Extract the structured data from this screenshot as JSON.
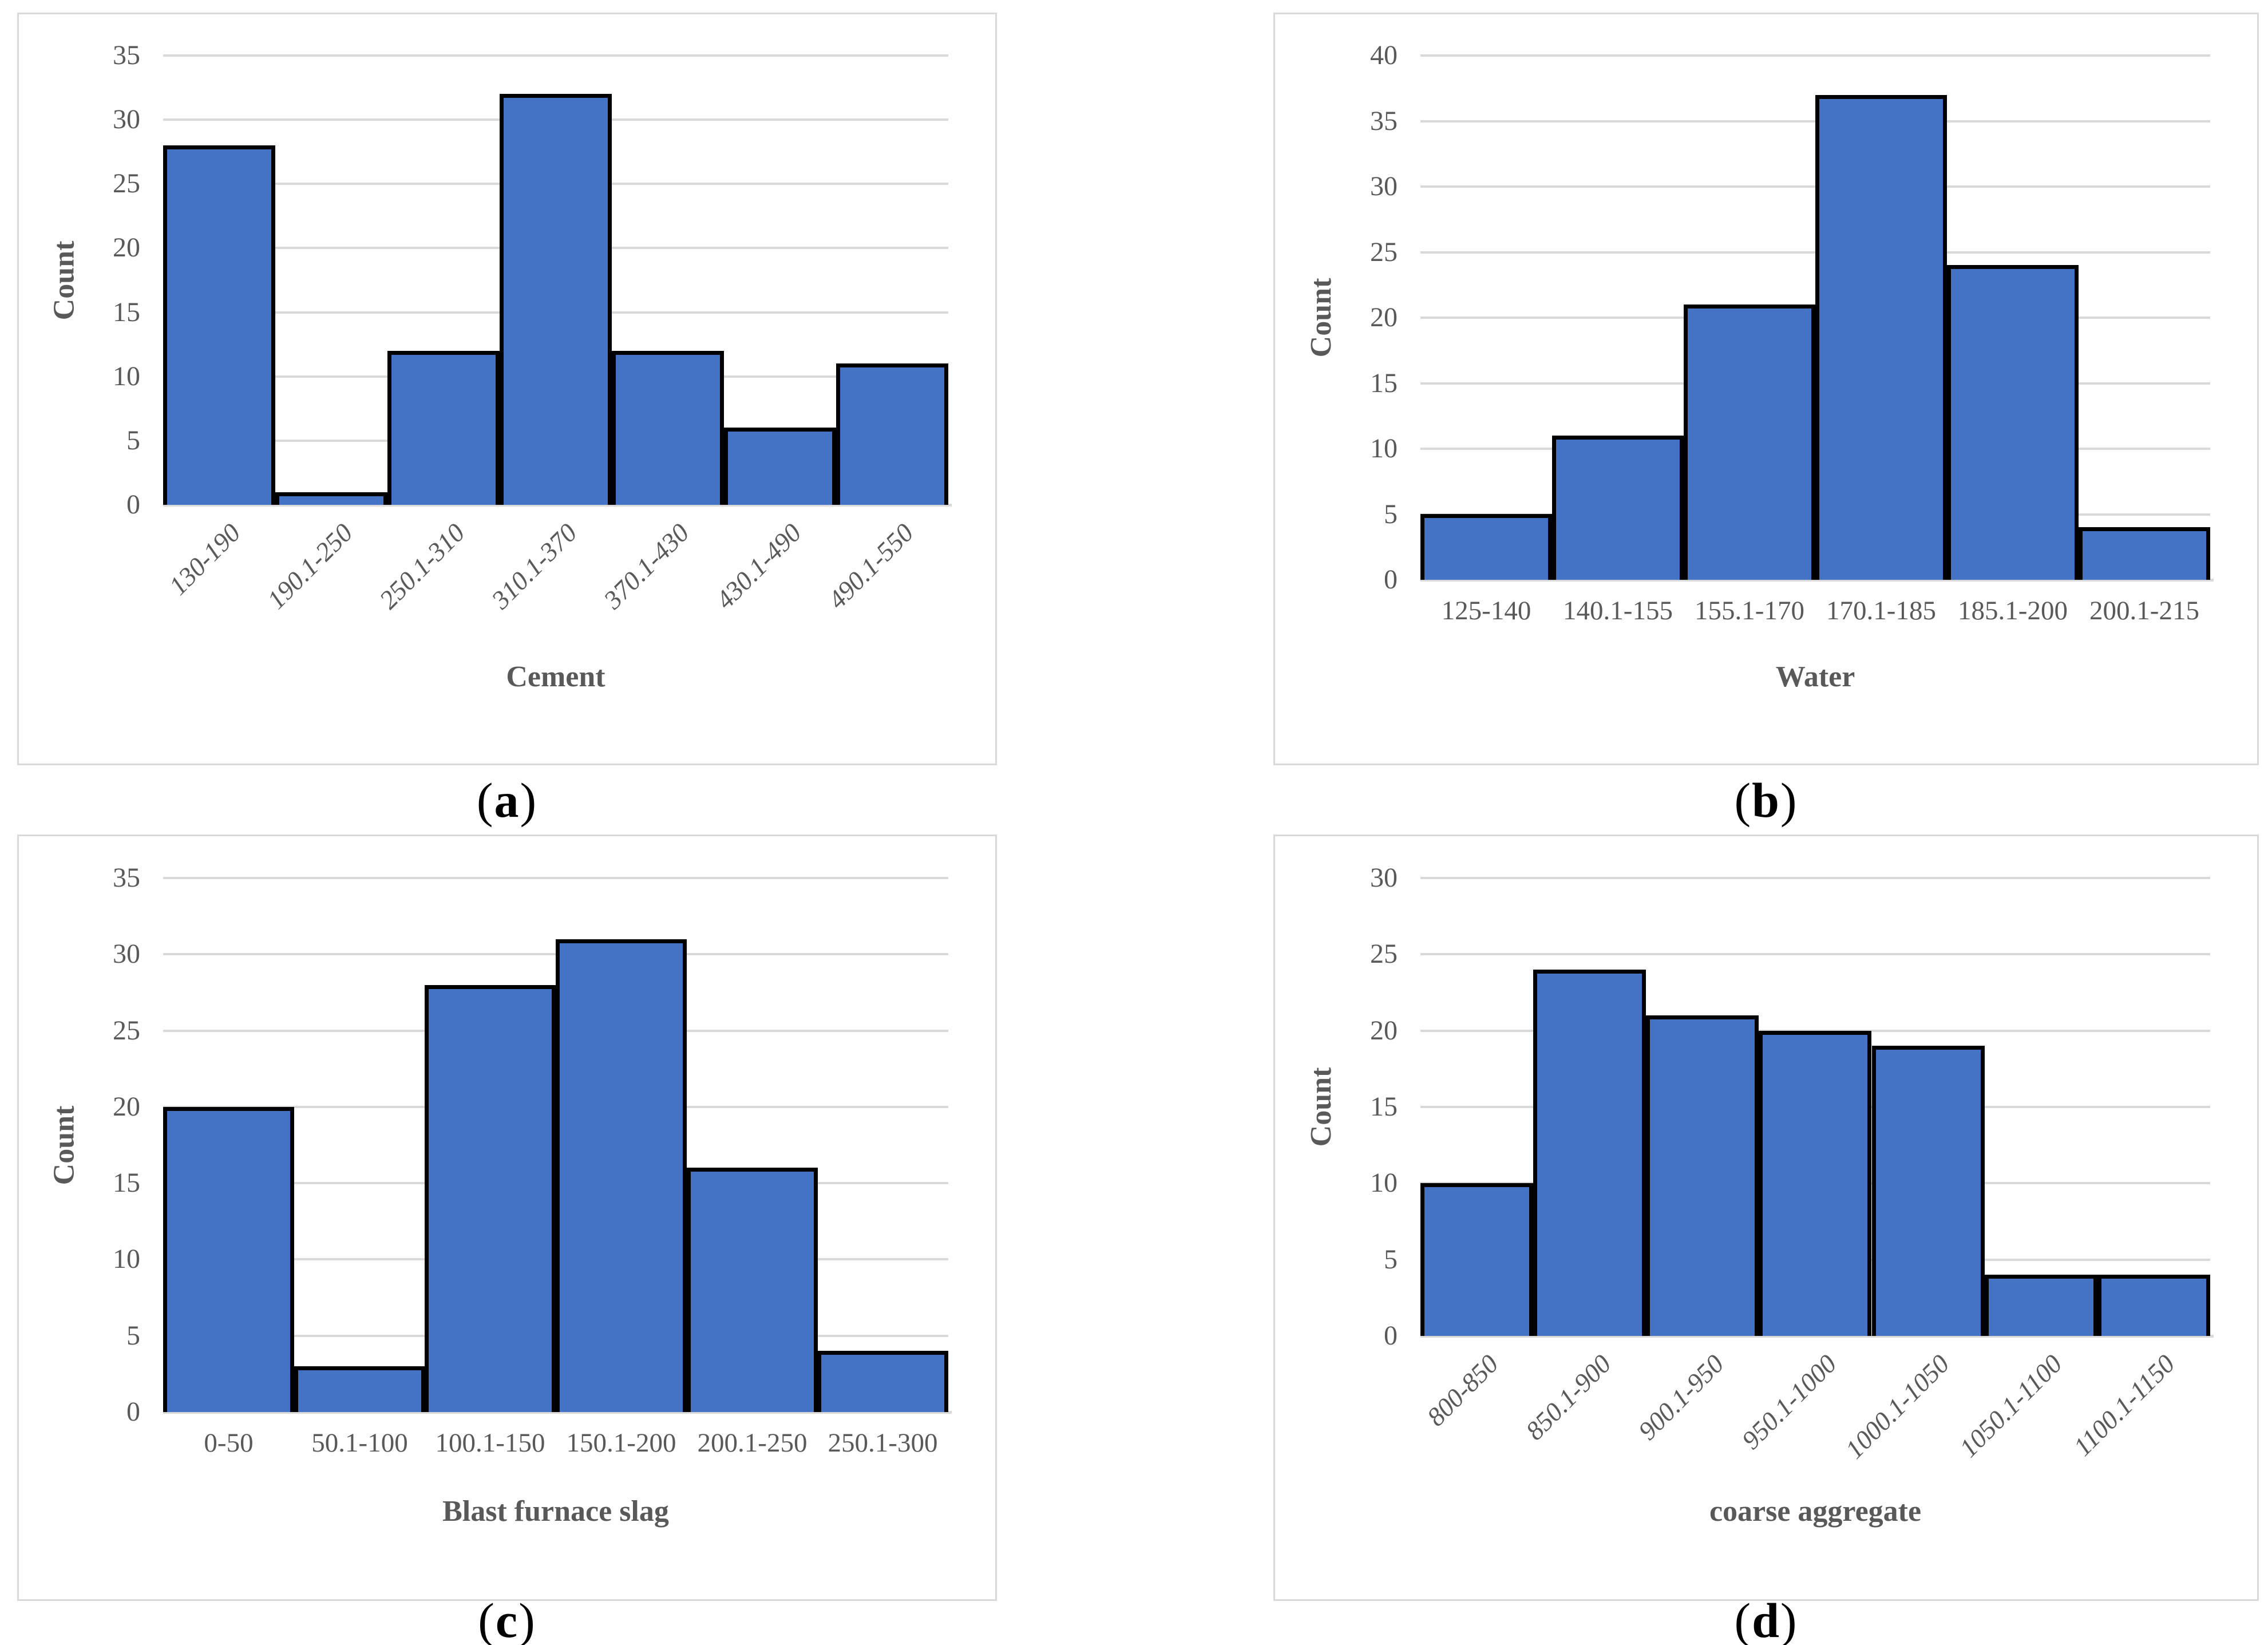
{
  "figure": {
    "background": "#FFFFFF",
    "description": "Four histogram panels of concrete mixture constituents"
  },
  "colors": {
    "bar_fill": "#4472C4",
    "bar_border": "#000000",
    "gridline": "#D9D9D9",
    "axis_line": "#D9D9D9",
    "tick_text": "#595959",
    "axis_title_text": "#595959",
    "panel_border": "#D9D9D9",
    "caption_text": "#000000"
  },
  "chart_data": [
    {
      "panel": "a",
      "caption_open": "(",
      "caption_letter": "a",
      "caption_close": ")",
      "type": "bar",
      "categories": [
        "130-190",
        "190.1-250",
        "250.1-310",
        "310.1-370",
        "370.1-430",
        "430.1-490",
        "490.1-550"
      ],
      "values": [
        28,
        1,
        12,
        32,
        12,
        6,
        11
      ],
      "title": "",
      "xlabel": "Cement",
      "ylabel": "Count",
      "ylim": [
        0,
        35
      ],
      "ytick_step": 5,
      "grid": true,
      "legend": "none",
      "x_tick_rotation": -45,
      "x_tick_italic": true
    },
    {
      "panel": "b",
      "caption_open": "(",
      "caption_letter": "b",
      "caption_close": ")",
      "type": "bar",
      "categories": [
        "125-140",
        "140.1-155",
        "155.1-170",
        "170.1-185",
        "185.1-200",
        "200.1-215"
      ],
      "values": [
        5,
        11,
        21,
        37,
        24,
        4
      ],
      "title": "",
      "xlabel": "Water",
      "ylabel": "Count",
      "ylim": [
        0,
        40
      ],
      "ytick_step": 5,
      "grid": true,
      "legend": "none",
      "x_tick_rotation": 0,
      "x_tick_italic": false
    },
    {
      "panel": "c",
      "caption_open": "(",
      "caption_letter": "c",
      "caption_close": ")",
      "type": "bar",
      "categories": [
        "0-50",
        "50.1-100",
        "100.1-150",
        "150.1-200",
        "200.1-250",
        "250.1-300"
      ],
      "values": [
        20,
        3,
        28,
        31,
        16,
        4
      ],
      "title": "",
      "xlabel": "Blast furnace slag",
      "ylabel": "Count",
      "ylim": [
        0,
        35
      ],
      "ytick_step": 5,
      "grid": true,
      "legend": "none",
      "x_tick_rotation": 0,
      "x_tick_italic": false
    },
    {
      "panel": "d",
      "caption_open": "(",
      "caption_letter": "d",
      "caption_close": ")",
      "type": "bar",
      "categories": [
        "800-850",
        "850.1-900",
        "900.1-950",
        "950.1-1000",
        "1000.1-1050",
        "1050.1-1100",
        "1100.1-1150"
      ],
      "values": [
        10,
        24,
        21,
        20,
        19,
        4,
        4
      ],
      "title": "",
      "xlabel": "coarse aggregate",
      "ylabel": "Count",
      "ylim": [
        0,
        30
      ],
      "ytick_step": 5,
      "grid": true,
      "legend": "none",
      "x_tick_rotation": -45,
      "x_tick_italic": true
    }
  ]
}
